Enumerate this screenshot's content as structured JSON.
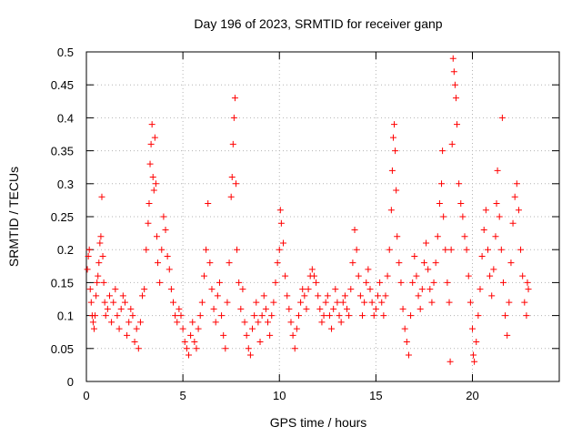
{
  "chart_data": {
    "type": "scatter",
    "title": "Day 196 of 2023, SRMTID for receiver ganp",
    "xlabel": "GPS time / hours",
    "ylabel": "SRMTID / TECUs",
    "xlim": [
      0,
      24.5
    ],
    "ylim": [
      0,
      0.5
    ],
    "xticks": [
      0,
      5,
      10,
      15,
      20
    ],
    "xtick_labels": [
      "0",
      "5",
      "10",
      "15",
      "20"
    ],
    "yticks": [
      0,
      0.05,
      0.1,
      0.15,
      0.2,
      0.25,
      0.3,
      0.35,
      0.4,
      0.45,
      0.5
    ],
    "ytick_labels": [
      "0",
      "0.05",
      "0.1",
      "0.15",
      "0.2",
      "0.25",
      "0.3",
      "0.35",
      "0.4",
      "0.45",
      "0.5"
    ],
    "grid": true,
    "marker": "+",
    "color": "#ff0000",
    "series": [
      {
        "name": "SRMTID",
        "points": [
          [
            0.05,
            0.17
          ],
          [
            0.1,
            0.19
          ],
          [
            0.15,
            0.2
          ],
          [
            0.2,
            0.14
          ],
          [
            0.25,
            0.12
          ],
          [
            0.3,
            0.1
          ],
          [
            0.35,
            0.09
          ],
          [
            0.4,
            0.08
          ],
          [
            0.45,
            0.1
          ],
          [
            0.5,
            0.13
          ],
          [
            0.55,
            0.15
          ],
          [
            0.6,
            0.16
          ],
          [
            0.65,
            0.18
          ],
          [
            0.7,
            0.21
          ],
          [
            0.75,
            0.22
          ],
          [
            0.8,
            0.28
          ],
          [
            0.85,
            0.19
          ],
          [
            0.9,
            0.15
          ],
          [
            0.95,
            0.12
          ],
          [
            1.0,
            0.1
          ],
          [
            1.1,
            0.11
          ],
          [
            1.2,
            0.13
          ],
          [
            1.3,
            0.09
          ],
          [
            1.4,
            0.12
          ],
          [
            1.5,
            0.14
          ],
          [
            1.6,
            0.1
          ],
          [
            1.7,
            0.08
          ],
          [
            1.8,
            0.11
          ],
          [
            1.9,
            0.13
          ],
          [
            2.0,
            0.12
          ],
          [
            2.1,
            0.07
          ],
          [
            2.2,
            0.09
          ],
          [
            2.3,
            0.11
          ],
          [
            2.4,
            0.1
          ],
          [
            2.5,
            0.06
          ],
          [
            2.6,
            0.08
          ],
          [
            2.7,
            0.05
          ],
          [
            2.8,
            0.09
          ],
          [
            2.9,
            0.13
          ],
          [
            3.0,
            0.14
          ],
          [
            3.1,
            0.2
          ],
          [
            3.2,
            0.24
          ],
          [
            3.25,
            0.27
          ],
          [
            3.3,
            0.33
          ],
          [
            3.35,
            0.36
          ],
          [
            3.4,
            0.39
          ],
          [
            3.45,
            0.31
          ],
          [
            3.5,
            0.29
          ],
          [
            3.55,
            0.37
          ],
          [
            3.6,
            0.3
          ],
          [
            3.65,
            0.22
          ],
          [
            3.7,
            0.18
          ],
          [
            3.8,
            0.15
          ],
          [
            3.9,
            0.2
          ],
          [
            4.0,
            0.25
          ],
          [
            4.1,
            0.23
          ],
          [
            4.2,
            0.19
          ],
          [
            4.3,
            0.17
          ],
          [
            4.4,
            0.14
          ],
          [
            4.5,
            0.12
          ],
          [
            4.6,
            0.1
          ],
          [
            4.7,
            0.09
          ],
          [
            4.8,
            0.11
          ],
          [
            4.9,
            0.1
          ],
          [
            5.0,
            0.08
          ],
          [
            5.1,
            0.06
          ],
          [
            5.2,
            0.05
          ],
          [
            5.3,
            0.04
          ],
          [
            5.4,
            0.07
          ],
          [
            5.5,
            0.09
          ],
          [
            5.6,
            0.06
          ],
          [
            5.7,
            0.05
          ],
          [
            5.8,
            0.08
          ],
          [
            5.9,
            0.1
          ],
          [
            6.0,
            0.12
          ],
          [
            6.1,
            0.16
          ],
          [
            6.2,
            0.2
          ],
          [
            6.3,
            0.27
          ],
          [
            6.4,
            0.18
          ],
          [
            6.5,
            0.14
          ],
          [
            6.6,
            0.11
          ],
          [
            6.7,
            0.09
          ],
          [
            6.8,
            0.13
          ],
          [
            6.9,
            0.15
          ],
          [
            7.0,
            0.1
          ],
          [
            7.1,
            0.07
          ],
          [
            7.2,
            0.05
          ],
          [
            7.3,
            0.12
          ],
          [
            7.4,
            0.18
          ],
          [
            7.5,
            0.28
          ],
          [
            7.55,
            0.31
          ],
          [
            7.6,
            0.36
          ],
          [
            7.65,
            0.4
          ],
          [
            7.7,
            0.43
          ],
          [
            7.75,
            0.3
          ],
          [
            7.8,
            0.2
          ],
          [
            7.9,
            0.15
          ],
          [
            8.0,
            0.11
          ],
          [
            8.1,
            0.14
          ],
          [
            8.2,
            0.09
          ],
          [
            8.3,
            0.07
          ],
          [
            8.4,
            0.05
          ],
          [
            8.5,
            0.04
          ],
          [
            8.6,
            0.08
          ],
          [
            8.7,
            0.1
          ],
          [
            8.8,
            0.12
          ],
          [
            8.9,
            0.09
          ],
          [
            9.0,
            0.06
          ],
          [
            9.1,
            0.1
          ],
          [
            9.2,
            0.13
          ],
          [
            9.3,
            0.11
          ],
          [
            9.4,
            0.09
          ],
          [
            9.5,
            0.07
          ],
          [
            9.6,
            0.1
          ],
          [
            9.7,
            0.12
          ],
          [
            9.8,
            0.15
          ],
          [
            9.9,
            0.18
          ],
          [
            10.0,
            0.2
          ],
          [
            10.05,
            0.26
          ],
          [
            10.1,
            0.24
          ],
          [
            10.2,
            0.21
          ],
          [
            10.3,
            0.16
          ],
          [
            10.4,
            0.13
          ],
          [
            10.5,
            0.11
          ],
          [
            10.6,
            0.09
          ],
          [
            10.7,
            0.07
          ],
          [
            10.8,
            0.05
          ],
          [
            10.9,
            0.08
          ],
          [
            11.0,
            0.1
          ],
          [
            11.1,
            0.12
          ],
          [
            11.2,
            0.14
          ],
          [
            11.3,
            0.13
          ],
          [
            11.4,
            0.11
          ],
          [
            11.5,
            0.14
          ],
          [
            11.6,
            0.16
          ],
          [
            11.7,
            0.17
          ],
          [
            11.8,
            0.16
          ],
          [
            11.9,
            0.15
          ],
          [
            12.0,
            0.13
          ],
          [
            12.1,
            0.11
          ],
          [
            12.2,
            0.09
          ],
          [
            12.3,
            0.1
          ],
          [
            12.4,
            0.12
          ],
          [
            12.5,
            0.13
          ],
          [
            12.6,
            0.1
          ],
          [
            12.7,
            0.08
          ],
          [
            12.8,
            0.11
          ],
          [
            12.9,
            0.14
          ],
          [
            13.0,
            0.12
          ],
          [
            13.1,
            0.1
          ],
          [
            13.2,
            0.09
          ],
          [
            13.3,
            0.12
          ],
          [
            13.4,
            0.13
          ],
          [
            13.5,
            0.11
          ],
          [
            13.6,
            0.1
          ],
          [
            13.7,
            0.14
          ],
          [
            13.8,
            0.18
          ],
          [
            13.9,
            0.23
          ],
          [
            14.0,
            0.2
          ],
          [
            14.1,
            0.16
          ],
          [
            14.2,
            0.13
          ],
          [
            14.3,
            0.1
          ],
          [
            14.4,
            0.12
          ],
          [
            14.5,
            0.15
          ],
          [
            14.6,
            0.17
          ],
          [
            14.7,
            0.14
          ],
          [
            14.8,
            0.12
          ],
          [
            14.9,
            0.1
          ],
          [
            15.0,
            0.11
          ],
          [
            15.1,
            0.13
          ],
          [
            15.2,
            0.15
          ],
          [
            15.3,
            0.12
          ],
          [
            15.4,
            0.1
          ],
          [
            15.5,
            0.13
          ],
          [
            15.6,
            0.16
          ],
          [
            15.7,
            0.2
          ],
          [
            15.8,
            0.26
          ],
          [
            15.85,
            0.32
          ],
          [
            15.9,
            0.37
          ],
          [
            15.95,
            0.39
          ],
          [
            16.0,
            0.35
          ],
          [
            16.05,
            0.29
          ],
          [
            16.1,
            0.22
          ],
          [
            16.2,
            0.18
          ],
          [
            16.3,
            0.15
          ],
          [
            16.4,
            0.11
          ],
          [
            16.5,
            0.08
          ],
          [
            16.6,
            0.06
          ],
          [
            16.7,
            0.04
          ],
          [
            16.8,
            0.1
          ],
          [
            16.9,
            0.15
          ],
          [
            17.0,
            0.19
          ],
          [
            17.1,
            0.16
          ],
          [
            17.2,
            0.13
          ],
          [
            17.3,
            0.11
          ],
          [
            17.4,
            0.14
          ],
          [
            17.5,
            0.18
          ],
          [
            17.6,
            0.21
          ],
          [
            17.7,
            0.17
          ],
          [
            17.8,
            0.14
          ],
          [
            17.9,
            0.12
          ],
          [
            18.0,
            0.15
          ],
          [
            18.1,
            0.18
          ],
          [
            18.2,
            0.22
          ],
          [
            18.3,
            0.27
          ],
          [
            18.4,
            0.3
          ],
          [
            18.45,
            0.35
          ],
          [
            18.5,
            0.25
          ],
          [
            18.6,
            0.2
          ],
          [
            18.7,
            0.15
          ],
          [
            18.8,
            0.12
          ],
          [
            18.85,
            0.03
          ],
          [
            18.9,
            0.2
          ],
          [
            18.95,
            0.36
          ],
          [
            19.0,
            0.49
          ],
          [
            19.05,
            0.47
          ],
          [
            19.1,
            0.45
          ],
          [
            19.15,
            0.43
          ],
          [
            19.2,
            0.39
          ],
          [
            19.3,
            0.3
          ],
          [
            19.4,
            0.27
          ],
          [
            19.5,
            0.25
          ],
          [
            19.6,
            0.22
          ],
          [
            19.7,
            0.2
          ],
          [
            19.8,
            0.16
          ],
          [
            19.9,
            0.12
          ],
          [
            20.0,
            0.08
          ],
          [
            20.05,
            0.04
          ],
          [
            20.1,
            0.03
          ],
          [
            20.2,
            0.06
          ],
          [
            20.3,
            0.1
          ],
          [
            20.4,
            0.14
          ],
          [
            20.5,
            0.19
          ],
          [
            20.6,
            0.23
          ],
          [
            20.7,
            0.26
          ],
          [
            20.8,
            0.2
          ],
          [
            20.9,
            0.16
          ],
          [
            21.0,
            0.13
          ],
          [
            21.1,
            0.17
          ],
          [
            21.2,
            0.22
          ],
          [
            21.25,
            0.27
          ],
          [
            21.3,
            0.32
          ],
          [
            21.4,
            0.25
          ],
          [
            21.5,
            0.2
          ],
          [
            21.55,
            0.4
          ],
          [
            21.6,
            0.15
          ],
          [
            21.7,
            0.1
          ],
          [
            21.8,
            0.07
          ],
          [
            21.9,
            0.12
          ],
          [
            22.0,
            0.18
          ],
          [
            22.1,
            0.24
          ],
          [
            22.2,
            0.28
          ],
          [
            22.3,
            0.3
          ],
          [
            22.4,
            0.26
          ],
          [
            22.5,
            0.2
          ],
          [
            22.6,
            0.16
          ],
          [
            22.7,
            0.12
          ],
          [
            22.8,
            0.1
          ],
          [
            22.85,
            0.15
          ],
          [
            22.9,
            0.14
          ]
        ]
      }
    ]
  }
}
